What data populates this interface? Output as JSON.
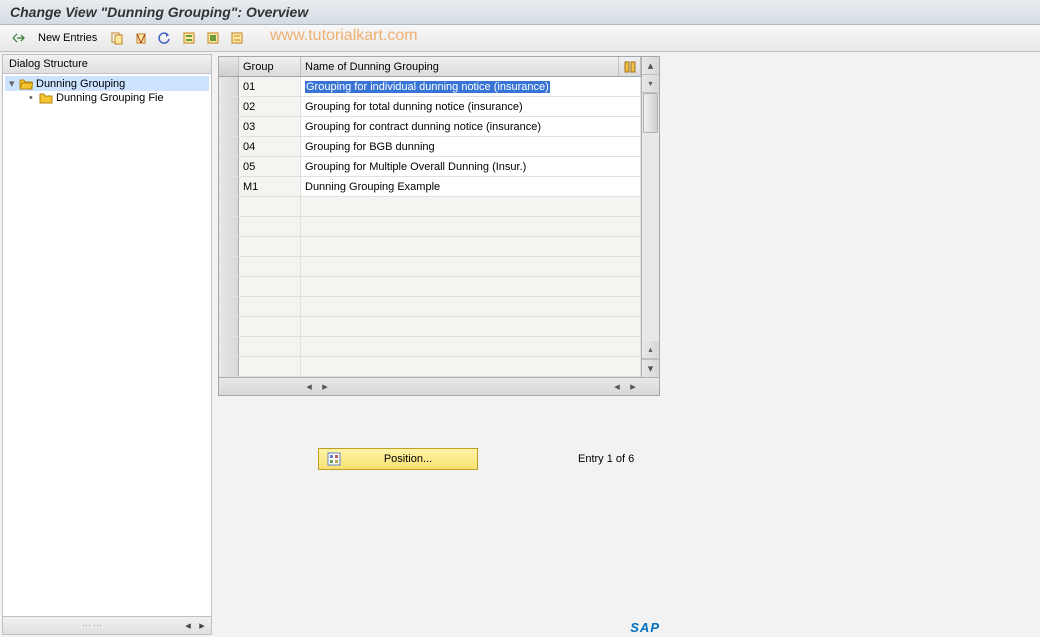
{
  "title": "Change View \"Dunning Grouping\": Overview",
  "toolbar": {
    "new_entries": "New Entries"
  },
  "watermark": "www.tutorialkart.com",
  "sidebar": {
    "header": "Dialog Structure",
    "items": [
      {
        "label": "Dunning Grouping",
        "level": 1,
        "expanded": true,
        "selected": true
      },
      {
        "label": "Dunning Grouping Fie",
        "level": 2,
        "expanded": false,
        "selected": false
      }
    ]
  },
  "table": {
    "columns": {
      "group": "Group",
      "name": "Name of Dunning Grouping"
    },
    "rows": [
      {
        "group": "01",
        "name": "Grouping for individual dunning notice (insurance)",
        "selected": true
      },
      {
        "group": "02",
        "name": "Grouping for total dunning notice (insurance)",
        "selected": false
      },
      {
        "group": "03",
        "name": "Grouping for contract dunning notice (insurance)",
        "selected": false
      },
      {
        "group": "04",
        "name": "Grouping for BGB dunning",
        "selected": false
      },
      {
        "group": "05",
        "name": "Grouping for Multiple Overall Dunning (Insur.)",
        "selected": false
      },
      {
        "group": "M1",
        "name": "Dunning Grouping Example",
        "selected": false
      }
    ],
    "empty_rows": 9
  },
  "position_button": "Position...",
  "entry_status": "Entry 1 of 6",
  "sap_logo": "SAP",
  "colors": {
    "title_bg_top": "#e8ecf0",
    "title_bg_bottom": "#d4dce4",
    "toolbar_bg_top": "#f8f8f8",
    "toolbar_bg_bottom": "#e8e8e8",
    "watermark": "#f0a050",
    "selection_bg": "#3874d6",
    "position_bg_top": "#fef4a8",
    "position_bg_bottom": "#f8e070",
    "folder": "#f4c430",
    "sap_blue": "#0070c0"
  }
}
